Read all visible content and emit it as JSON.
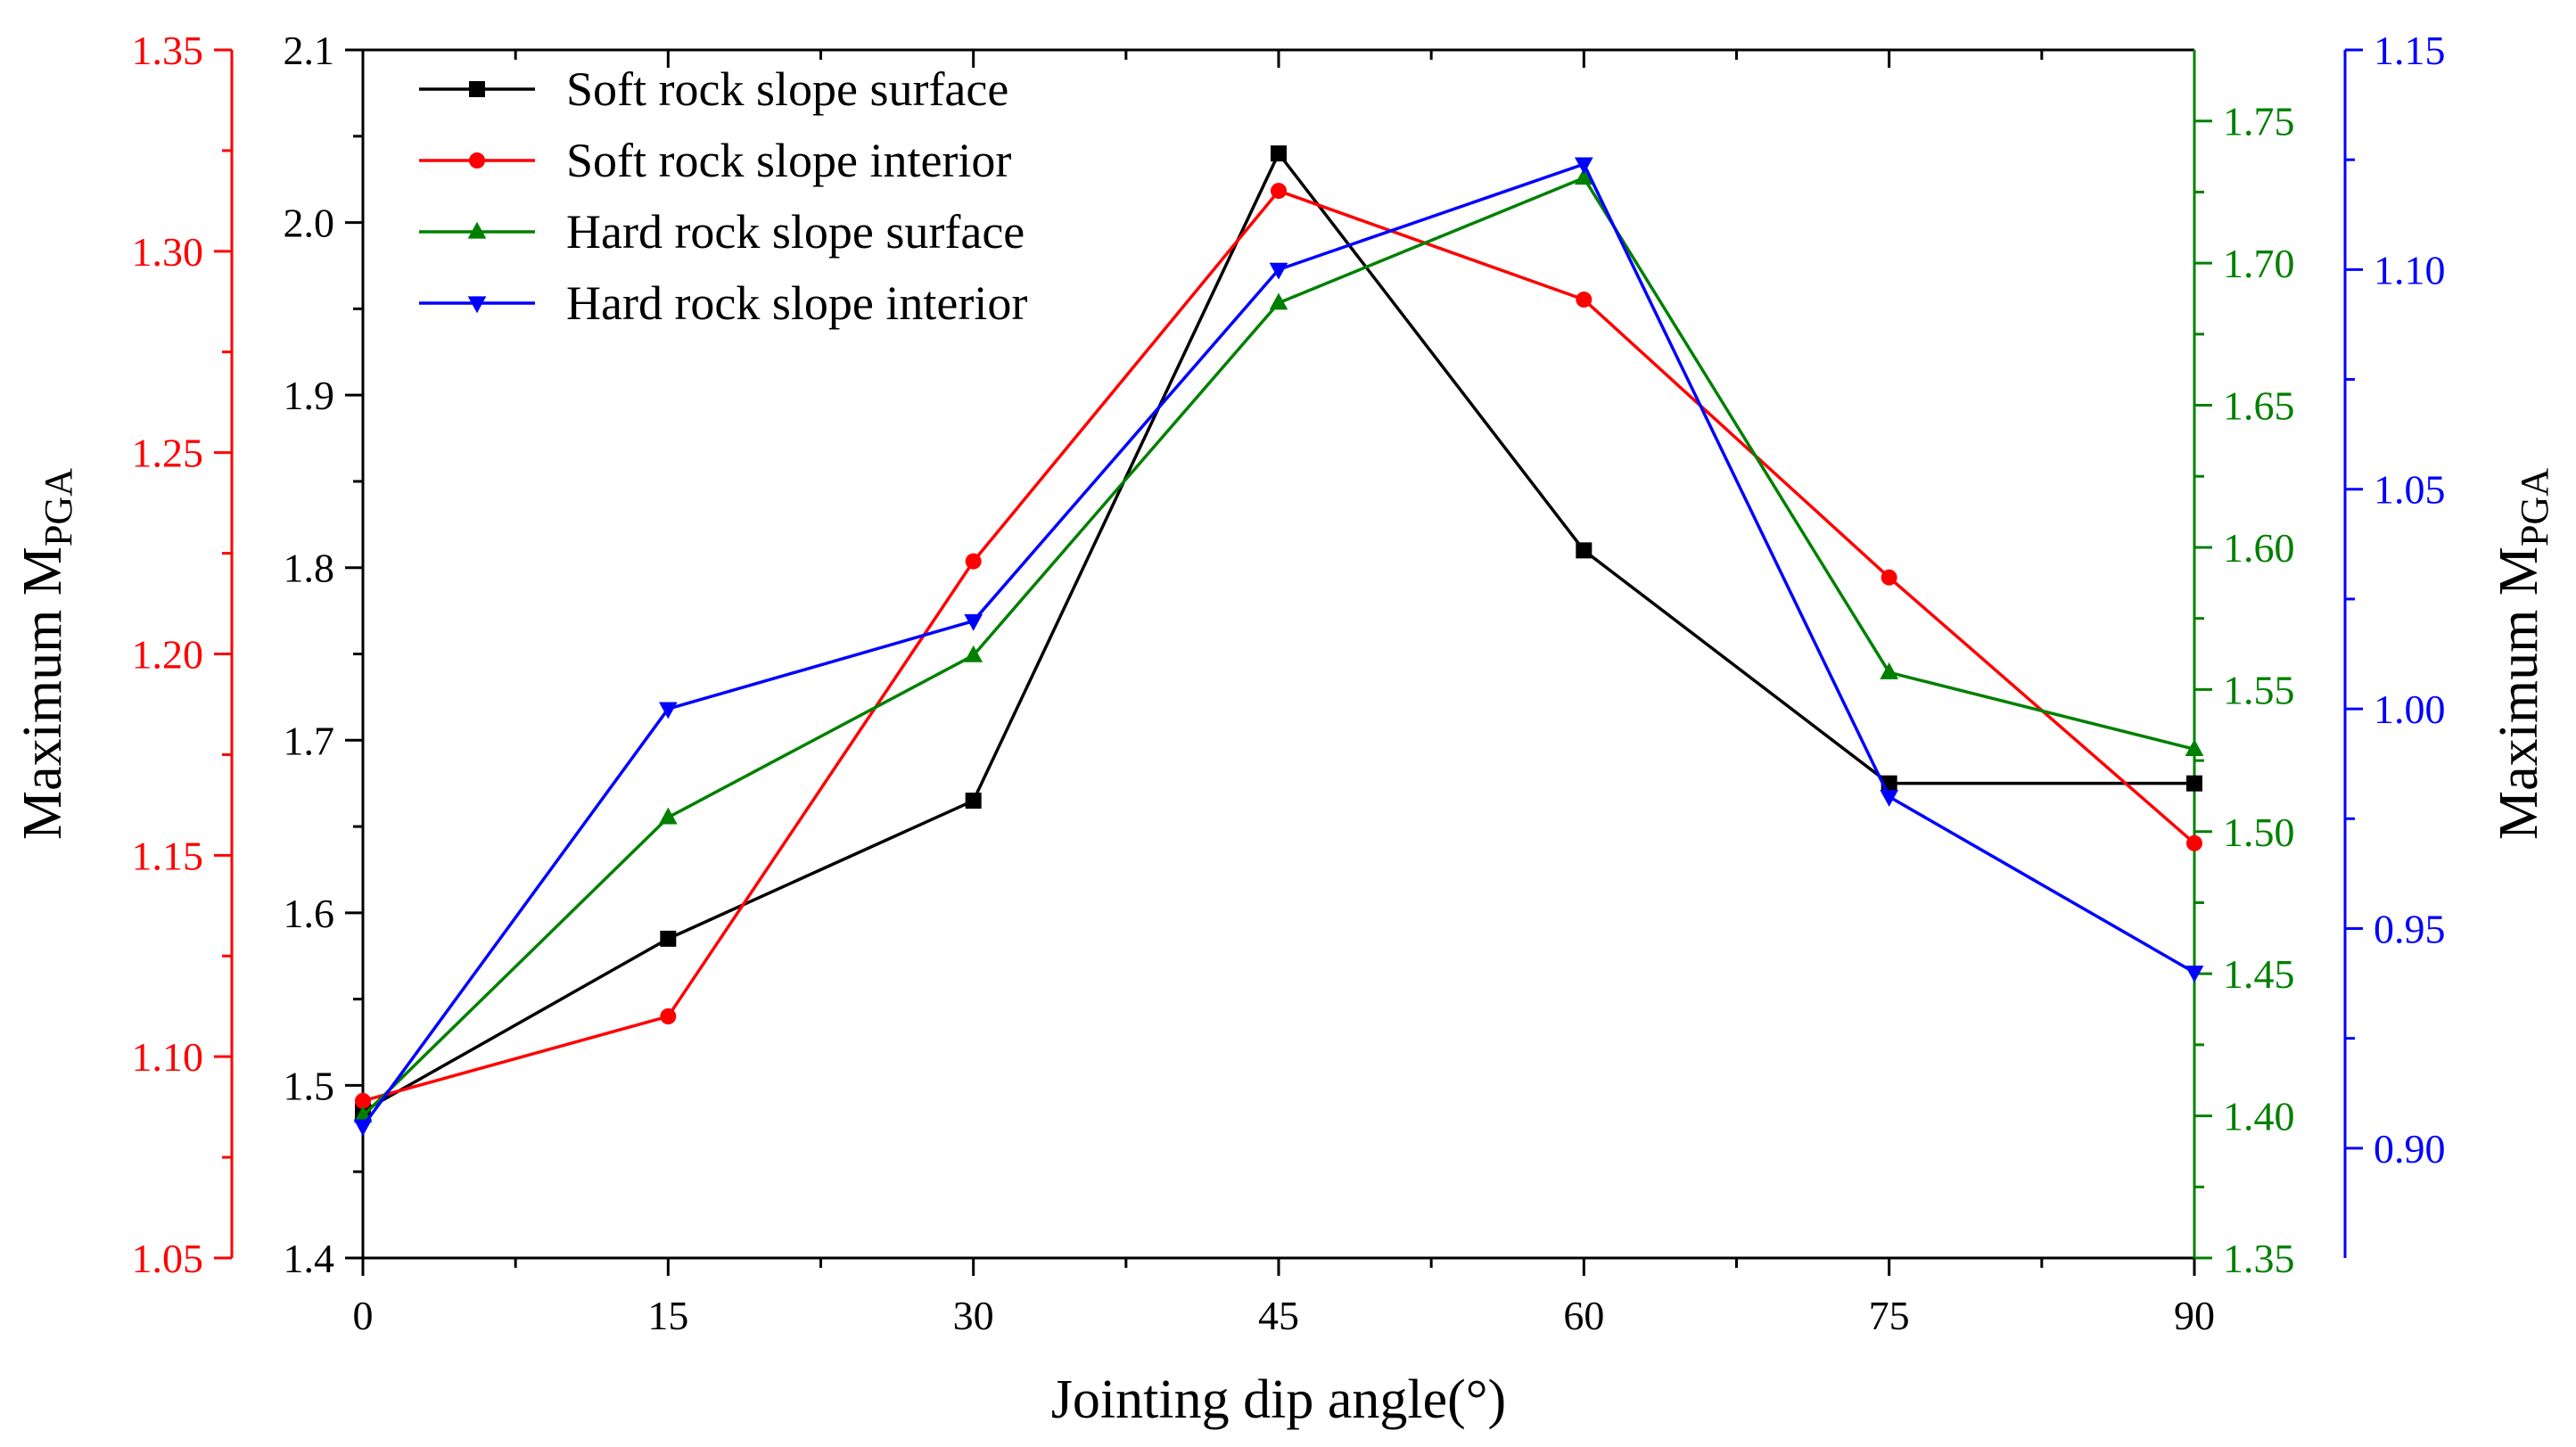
{
  "chart_data": {
    "type": "line",
    "xlabel": "Jointing dip angle(°)",
    "x": [
      0,
      15,
      30,
      45,
      60,
      75,
      90
    ],
    "x_ticks": [
      "0",
      "15",
      "30",
      "45",
      "60",
      "75",
      "90"
    ],
    "xlim": [
      0,
      90
    ],
    "legend_position": "top-left",
    "grid": false,
    "axes": [
      {
        "id": "red",
        "side": "left",
        "position": "outer",
        "color": "#ff0000",
        "label": "Maximum M",
        "label_sub": "PGA",
        "show_label": true,
        "ylim": [
          1.05,
          1.35
        ],
        "ticks": [
          "1.05",
          "1.10",
          "1.15",
          "1.20",
          "1.25",
          "1.30",
          "1.35"
        ]
      },
      {
        "id": "black",
        "side": "left",
        "position": "inner",
        "color": "#000000",
        "label": "",
        "show_label": false,
        "ylim": [
          1.4,
          2.1
        ],
        "ticks": [
          "1.4",
          "1.5",
          "1.6",
          "1.7",
          "1.8",
          "1.9",
          "2.0",
          "2.1"
        ]
      },
      {
        "id": "green",
        "side": "right",
        "position": "inner",
        "color": "#008000",
        "label": "",
        "show_label": false,
        "ylim": [
          1.35,
          1.775
        ],
        "ticks": [
          "1.35",
          "1.40",
          "1.45",
          "1.50",
          "1.55",
          "1.60",
          "1.65",
          "1.70",
          "1.75"
        ]
      },
      {
        "id": "blue",
        "side": "right",
        "position": "outer",
        "color": "#0000ff",
        "label": "Maximum M",
        "label_sub": "PGA",
        "show_label": true,
        "ylim": [
          0.875,
          1.15
        ],
        "ticks": [
          "0.90",
          "0.95",
          "1.00",
          "1.05",
          "1.10",
          "1.15"
        ]
      }
    ],
    "series": [
      {
        "name": "Soft rock slope surface",
        "axis": "black",
        "color": "#000000",
        "marker": "square",
        "values": [
          1.485,
          1.585,
          1.665,
          2.04,
          1.81,
          1.675,
          1.675
        ]
      },
      {
        "name": "Soft rock slope interior",
        "axis": "red",
        "color": "#ff0000",
        "marker": "circle",
        "values": [
          1.089,
          1.11,
          1.223,
          1.315,
          1.288,
          1.219,
          1.153
        ]
      },
      {
        "name": "Hard rock slope surface",
        "axis": "green",
        "color": "#008000",
        "marker": "triangle-up",
        "values": [
          1.4,
          1.505,
          1.562,
          1.686,
          1.73,
          1.556,
          1.529
        ]
      },
      {
        "name": "Hard rock slope interior",
        "axis": "blue",
        "color": "#0000ff",
        "marker": "triangle-down",
        "values": [
          0.905,
          1.0,
          1.02,
          1.1,
          1.124,
          0.98,
          0.94
        ]
      }
    ]
  }
}
